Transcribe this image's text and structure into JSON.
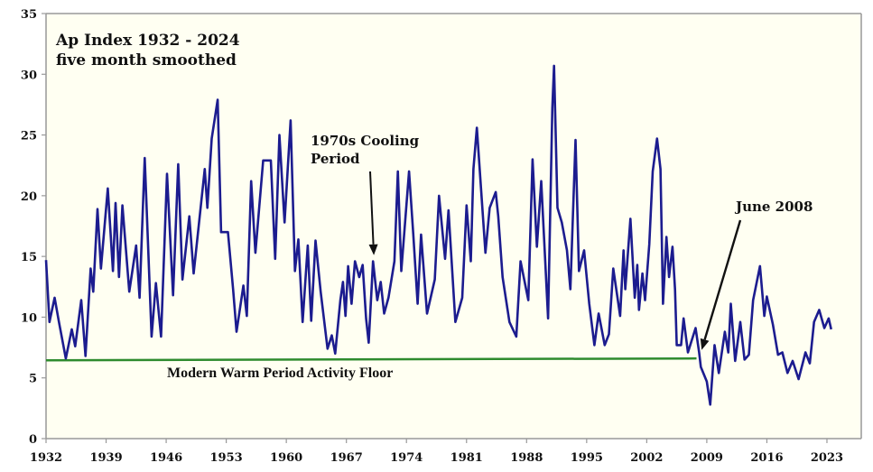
{
  "chart_data": {
    "type": "line",
    "title": "Ap Index 1932 - 2024",
    "subtitle": "five month smoothed",
    "xlabel": "",
    "ylabel": "",
    "xlim": [
      1932,
      2027
    ],
    "ylim": [
      0,
      35
    ],
    "grid": false,
    "x_ticks": [
      "1932",
      "1939",
      "1946",
      "1953",
      "1960",
      "1967",
      "1974",
      "1981",
      "1988",
      "1995",
      "2002",
      "2009",
      "2016",
      "2023"
    ],
    "y_ticks": [
      "0",
      "5",
      "10",
      "15",
      "20",
      "25",
      "30",
      "35"
    ],
    "colors": {
      "series": "#1c1c8f",
      "floor": "#2e8b2e",
      "plot_bg": "#fffff2",
      "axis": "#999999"
    },
    "series": [
      {
        "name": "Ap Index (5-month smoothed)",
        "x": [
          1932,
          1932.4,
          1933,
          1933.5,
          1934.3,
          1935,
          1935.4,
          1936.1,
          1936.6,
          1937.2,
          1937.5,
          1938,
          1938.4,
          1939.2,
          1939.8,
          1940.1,
          1940.5,
          1940.9,
          1941.7,
          1942.5,
          1942.9,
          1943.5,
          1944.3,
          1944.8,
          1945.4,
          1946.1,
          1946.8,
          1947.4,
          1947.9,
          1948.7,
          1949.2,
          1950.5,
          1950.8,
          1951.3,
          1952,
          1952.4,
          1953.2,
          1953.8,
          1954.2,
          1955,
          1955.4,
          1955.9,
          1956.4,
          1957.3,
          1958.2,
          1958.7,
          1959.2,
          1959.8,
          1960.5,
          1961,
          1961.4,
          1961.9,
          1962.5,
          1962.9,
          1963.4,
          1964,
          1964.8,
          1965.3,
          1965.7,
          1966.3,
          1966.6,
          1966.9,
          1967.2,
          1967.6,
          1968,
          1968.5,
          1968.9,
          1969.3,
          1969.6,
          1970.1,
          1970.6,
          1971,
          1971.4,
          1971.9,
          1972.6,
          1973,
          1973.4,
          1974.3,
          1974.8,
          1975.3,
          1975.7,
          1976.4,
          1977.3,
          1977.8,
          1978.5,
          1978.9,
          1979.7,
          1980.5,
          1981,
          1981.5,
          1981.8,
          1982.2,
          1982.7,
          1983.2,
          1983.7,
          1984.4,
          1984.7,
          1985.2,
          1986,
          1986.8,
          1987.3,
          1988.2,
          1988.7,
          1989.2,
          1989.7,
          1990.5,
          1991,
          1991.2,
          1991.6,
          1992.1,
          1992.7,
          1993.1,
          1993.7,
          1994.1,
          1994.7,
          1995.3,
          1995.9,
          1996.4,
          1997.1,
          1997.6,
          1998.1,
          1998.9,
          1999.3,
          1999.5,
          2000.1,
          2000.6,
          2000.9,
          2001.1,
          2001.5,
          2001.8,
          2002.3,
          2002.7,
          2003.2,
          2003.6,
          2003.9,
          2004.3,
          2004.6,
          2005,
          2005.3,
          2005.5,
          2006,
          2006.3,
          2006.8,
          2007.7,
          2008.1,
          2008.3,
          2009,
          2009.4,
          2009.9,
          2010.4,
          2011.1,
          2011.5,
          2011.8,
          2012.3,
          2012.9,
          2013.4,
          2013.9,
          2014.4,
          2015.2,
          2015.7,
          2016,
          2016.7,
          2017.3,
          2017.8,
          2018.4,
          2019,
          2019.7,
          2020.5,
          2021,
          2021.5,
          2022.1,
          2022.7,
          2023.2,
          2023.5
        ],
        "y": [
          14.7,
          9.6,
          11.6,
          9.6,
          6.6,
          9,
          7.6,
          11.4,
          6.8,
          14,
          12.1,
          18.9,
          14,
          20.6,
          13.8,
          19.4,
          13.3,
          19.2,
          12.1,
          15.9,
          11.6,
          23.1,
          8.4,
          12.8,
          8.4,
          21.8,
          11.8,
          22.6,
          13.1,
          18.3,
          13.6,
          22.2,
          19,
          24.7,
          27.9,
          17,
          17,
          12.3,
          8.8,
          12.6,
          10.1,
          21.2,
          15.3,
          22.9,
          22.9,
          14.8,
          25,
          17.8,
          26.2,
          13.8,
          16.4,
          9.6,
          15.9,
          9.7,
          16.3,
          12.1,
          7.4,
          8.5,
          7,
          11.4,
          12.9,
          10.1,
          14.2,
          11.1,
          14.6,
          13.3,
          14.3,
          9.9,
          7.9,
          14.6,
          11.4,
          12.9,
          10.3,
          11.6,
          14.6,
          22,
          13.8,
          22,
          16.8,
          11.1,
          16.8,
          10.3,
          13.1,
          20,
          14.8,
          18.8,
          9.6,
          11.6,
          19.2,
          14.6,
          22.2,
          25.6,
          20.5,
          15.3,
          19,
          20.3,
          18.3,
          13.3,
          9.6,
          8.4,
          14.6,
          11.4,
          23,
          15.8,
          21.2,
          9.9,
          27.2,
          30.7,
          19,
          17.8,
          15.5,
          12.3,
          24.6,
          13.8,
          15.5,
          11.1,
          7.7,
          10.3,
          7.7,
          8.6,
          14,
          10.1,
          15.5,
          12.3,
          18.1,
          11.6,
          14.3,
          10.6,
          13.6,
          11.4,
          16,
          22,
          24.7,
          22.2,
          11.1,
          16.6,
          13.3,
          15.8,
          12.3,
          7.7,
          7.7,
          9.9,
          7.1,
          9.1,
          7.1,
          5.9,
          4.7,
          2.8,
          7.7,
          5.4,
          8.8,
          7.1,
          11.1,
          6.4,
          9.6,
          6.5,
          6.9,
          11.4,
          14.2,
          10.1,
          11.7,
          9.4,
          6.9,
          7.1,
          5.4,
          6.4,
          4.9,
          7.1,
          6.2,
          9.6,
          10.6,
          9.1,
          9.9,
          9
        ]
      }
    ],
    "floor_line": {
      "label": "Modern Warm Period Activity Floor",
      "x": [
        1932,
        2007.8
      ],
      "y": [
        6.45,
        6.6
      ]
    },
    "annotations": [
      {
        "lines": [
          "1970s Cooling",
          "Period"
        ],
        "target_x": 1970.2,
        "target_y": 15.1
      },
      {
        "lines": [
          "June 2008"
        ],
        "target_x": 2008.4,
        "target_y": 7.3
      }
    ]
  }
}
